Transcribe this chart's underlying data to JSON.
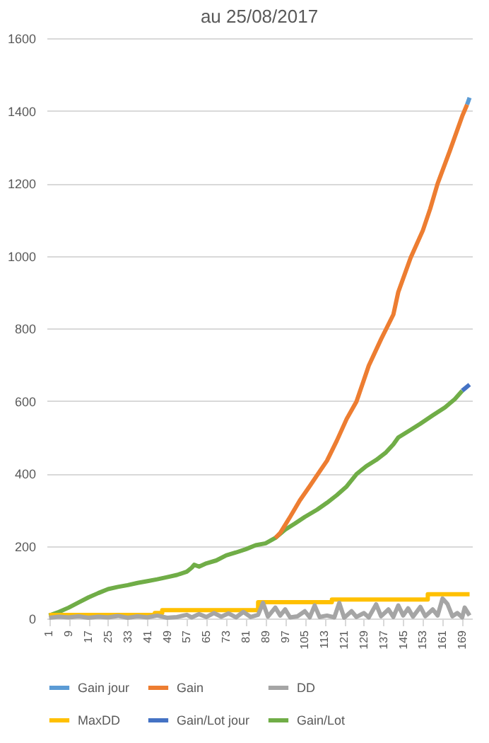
{
  "chart_data": {
    "type": "line",
    "title": "au 25/08/2017",
    "xlim": [
      0,
      173
    ],
    "xticks": [
      1,
      9,
      17,
      25,
      33,
      41,
      49,
      57,
      65,
      73,
      81,
      89,
      97,
      105,
      113,
      121,
      129,
      137,
      145,
      153,
      161,
      169
    ],
    "ylim": [
      0,
      1600
    ],
    "yticks": [
      0,
      200,
      400,
      600,
      800,
      {
        "value": 1000,
        "label": "1000"
      },
      {
        "value": 1200,
        "label": "1200"
      },
      {
        "value": 1400,
        "label": "1400"
      },
      {
        "value": 1600,
        "label": "1600"
      }
    ],
    "grid": "y",
    "legend": "bottom",
    "line_style": "solid",
    "marker": "none",
    "series": [
      {
        "name": "Gain jour",
        "color": "#5b9bd5",
        "x": [
          171,
          172
        ],
        "values": [
          1417,
          1436
        ]
      },
      {
        "name": "Gain",
        "color": "#ed7d31",
        "x": [
          93,
          95,
          99,
          103,
          107,
          111,
          114,
          118,
          122,
          126,
          131,
          136,
          141,
          143,
          148,
          153,
          156,
          159,
          164,
          169,
          171
        ],
        "values": [
          222,
          236,
          280,
          326,
          365,
          405,
          435,
          490,
          550,
          598,
          697,
          770,
          838,
          900,
          994,
          1070,
          1130,
          1199,
          1290,
          1385,
          1417
        ]
      },
      {
        "name": "DD",
        "color": "#a5a5a5",
        "x": [
          1,
          5,
          9,
          13,
          17,
          21,
          25,
          29,
          33,
          37,
          41,
          45,
          49,
          53,
          57,
          59,
          62,
          65,
          68,
          71,
          74,
          77,
          80,
          83,
          86,
          88,
          90,
          93,
          95,
          97,
          99,
          102,
          105,
          107,
          109,
          111,
          114,
          117,
          119,
          121,
          124,
          126,
          129,
          131,
          134,
          136,
          139,
          141,
          143,
          145,
          147,
          149,
          152,
          154,
          157,
          159,
          161,
          163,
          165,
          167,
          169,
          170,
          172
        ],
        "values": [
          2,
          5,
          3,
          6,
          2,
          5,
          3,
          7,
          2,
          6,
          3,
          8,
          2,
          4,
          10,
          3,
          12,
          4,
          15,
          5,
          14,
          3,
          18,
          4,
          10,
          43,
          5,
          30,
          8,
          25,
          3,
          6,
          20,
          3,
          36,
          4,
          8,
          3,
          43,
          2,
          20,
          4,
          15,
          3,
          39,
          6,
          25,
          4,
          36,
          8,
          28,
          5,
          32,
          6,
          25,
          8,
          55,
          40,
          6,
          15,
          3,
          30,
          8
        ]
      },
      {
        "name": "MaxDD",
        "color": "#ffc000",
        "type": "step",
        "x": [
          1,
          40,
          44,
          47,
          86,
          116,
          155,
          172
        ],
        "values": [
          10,
          10,
          15,
          23,
          45,
          52,
          67,
          67
        ]
      },
      {
        "name": "Gain/Lot jour",
        "color": "#4472c4",
        "x": [
          169,
          172
        ],
        "values": [
          628,
          645
        ]
      },
      {
        "name": "Gain/Lot",
        "color": "#70ad47",
        "x": [
          1,
          5,
          9,
          13,
          17,
          21,
          25,
          29,
          33,
          37,
          41,
          45,
          49,
          53,
          57,
          59,
          60,
          62,
          65,
          69,
          73,
          77,
          81,
          85,
          89,
          93,
          97,
          101,
          105,
          110,
          114,
          118,
          122,
          126,
          130,
          134,
          138,
          141,
          143,
          148,
          152,
          157,
          162,
          166,
          169
        ],
        "values": [
          8,
          18,
          30,
          44,
          58,
          70,
          81,
          87,
          92,
          98,
          103,
          108,
          114,
          120,
          129,
          140,
          148,
          143,
          152,
          160,
          174,
          182,
          191,
          202,
          207,
          222,
          245,
          262,
          280,
          300,
          319,
          340,
          364,
          398,
          420,
          437,
          458,
          480,
          499,
          520,
          537,
          560,
          582,
          605,
          628
        ]
      }
    ]
  }
}
